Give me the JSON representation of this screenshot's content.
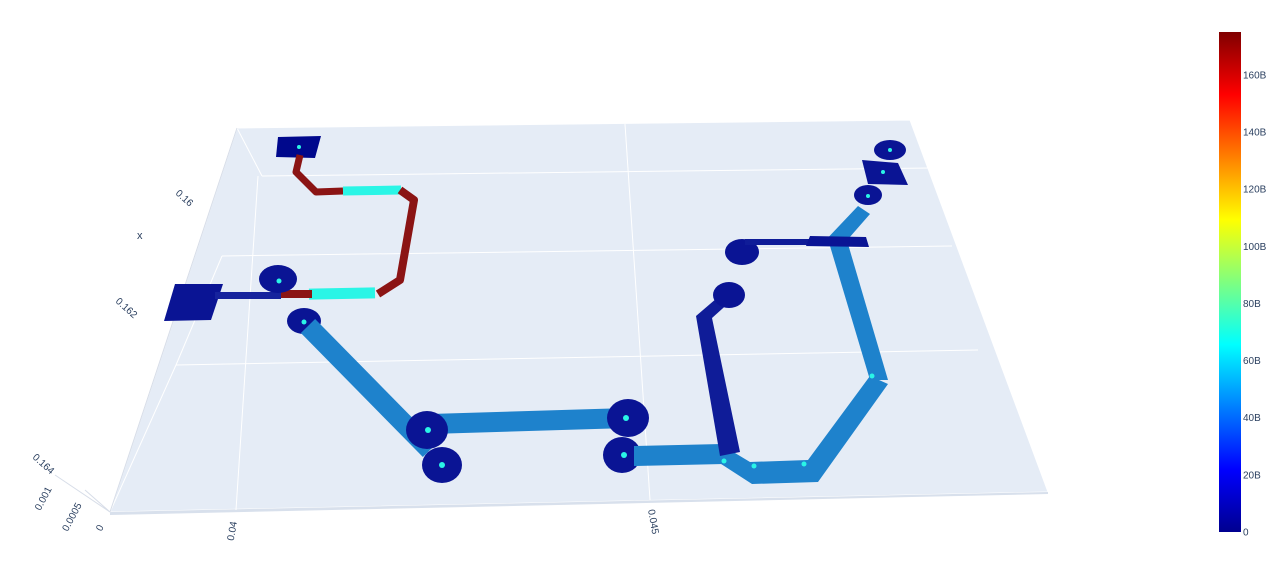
{
  "chart_data": {
    "type": "surface",
    "x_axis": {
      "title": "x",
      "ticks": [
        "0.16",
        "0.162",
        "0.164"
      ]
    },
    "y_axis": {
      "ticks": [
        "0.04",
        "0.045"
      ]
    },
    "z_axis": {
      "ticks": [
        "0.001",
        "0.0005",
        "0"
      ]
    },
    "colorbar": {
      "colorscale": "jet",
      "range": [
        0,
        175000000000
      ],
      "ticks": [
        "0",
        "20B",
        "40B",
        "60B",
        "80B",
        "100B",
        "120B",
        "140B",
        "160B"
      ],
      "tick_values": [
        0,
        20000000000,
        40000000000,
        60000000000,
        80000000000,
        100000000000,
        120000000000,
        140000000000,
        160000000000
      ]
    },
    "traces": [
      {
        "name": "upper-left-narrow-trace",
        "value": 175000000000
      },
      {
        "name": "upper-left-narrow-highlight",
        "value": 65000000000
      },
      {
        "name": "main-wide-trace",
        "value": 42000000000
      },
      {
        "name": "right-narrow-trace",
        "value": 5000000000
      },
      {
        "name": "pads",
        "value": 3000000000
      }
    ],
    "grid": true,
    "background": "#e5ecf6"
  }
}
